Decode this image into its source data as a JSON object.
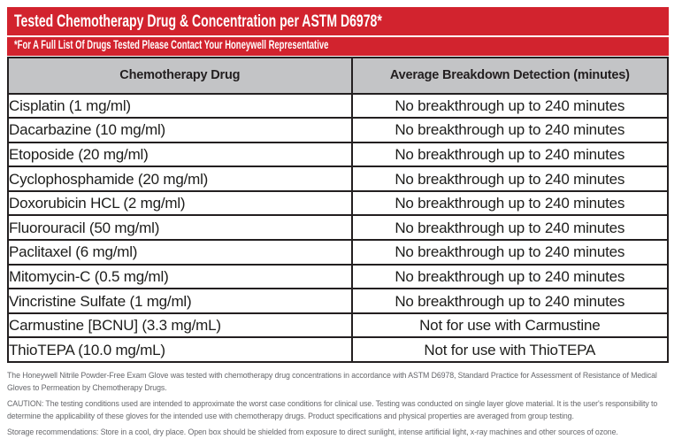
{
  "banner": {
    "title": "Tested Chemotherapy Drug & Concentration per ASTM D6978*",
    "subtitle": "*For A Full List Of Drugs Tested Please Contact Your Honeywell Representative"
  },
  "table": {
    "columns": {
      "drug": "Chemotherapy Drug",
      "detection": "Average Breakdown Detection (minutes)"
    },
    "rows": [
      {
        "drug": "Cisplatin (1 mg/ml)",
        "detection": "No breakthrough up to 240 minutes"
      },
      {
        "drug": "Dacarbazine (10 mg/ml)",
        "detection": "No breakthrough up to 240 minutes"
      },
      {
        "drug": "Etoposide (20 mg/ml)",
        "detection": "No breakthrough up to 240 minutes"
      },
      {
        "drug": "Cyclophosphamide (20 mg/ml)",
        "detection": "No breakthrough up to 240 minutes"
      },
      {
        "drug": "Doxorubicin HCL (2 mg/ml)",
        "detection": "No breakthrough up to 240 minutes"
      },
      {
        "drug": "Fluorouracil (50 mg/ml)",
        "detection": "No breakthrough up to 240 minutes"
      },
      {
        "drug": "Paclitaxel (6 mg/ml)",
        "detection": "No breakthrough up to 240 minutes"
      },
      {
        "drug": "Mitomycin-C (0.5 mg/ml)",
        "detection": "No breakthrough up to 240 minutes"
      },
      {
        "drug": "Vincristine Sulfate (1 mg/ml)",
        "detection": "No breakthrough up to 240 minutes"
      },
      {
        "drug": "Carmustine [BCNU] (3.3 mg/mL)",
        "detection": "Not for use with Carmustine"
      },
      {
        "drug": "ThioTEPA (10.0 mg/mL)",
        "detection": "Not for use with ThioTEPA"
      }
    ]
  },
  "footnotes": {
    "testing": "The Honeywell Nitrile Powder-Free Exam Glove was tested with chemotherapy drug concentrations in accordance with ASTM D6978, Standard Practice for Assessment of Resistance of Medical Gloves to Permeation by Chemotherapy Drugs.",
    "caution": "CAUTION: The testing conditions used are intended to approximate the worst case conditions for clinical use. Testing was conducted on single layer glove material. It is the user's responsibility to determine the applicability of these gloves for the intended use with chemotherapy drugs. Product specifications and physical properties are averaged from group testing.",
    "storage": "Storage recommendations: Store in a cool, dry place. Open box should be shielded from exposure to direct sunlight, intense artificial light, x-ray machines and other sources of ozone."
  },
  "colors": {
    "banner_red": "#D2232E",
    "header_gray": "#C3C4C6",
    "border_black": "#231F20",
    "footnote_gray": "#66676B"
  }
}
